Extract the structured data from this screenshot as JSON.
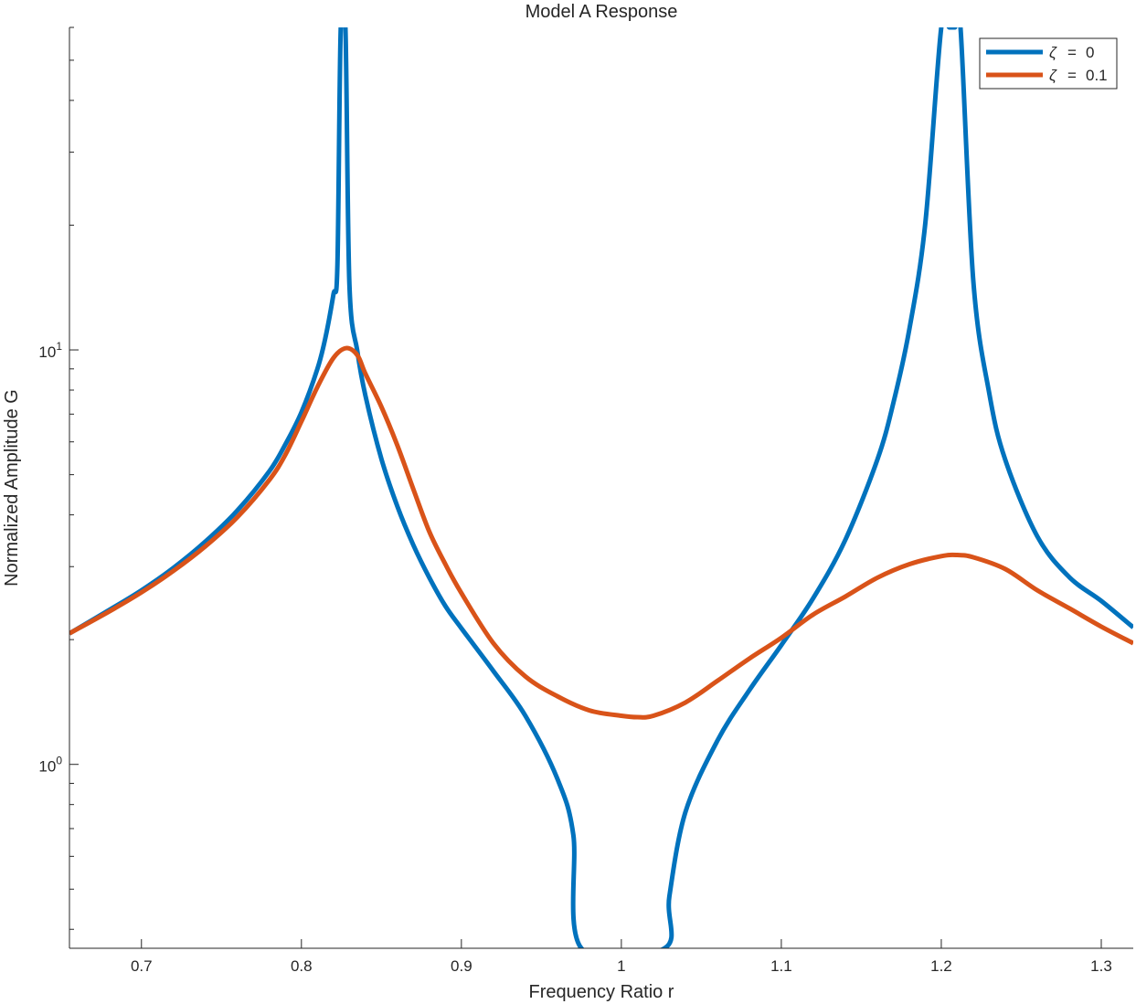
{
  "chart_data": {
    "type": "line",
    "title": "Model A Response",
    "xlabel": "Frequency Ratio r",
    "ylabel": "Normalized Amplitude G",
    "y_scale": "log",
    "xlim": [
      0.655,
      1.32
    ],
    "ylim": [
      0.36,
      60
    ],
    "x_ticks": [
      {
        "value": 0.7,
        "label": "0.7"
      },
      {
        "value": 0.8,
        "label": "0.8"
      },
      {
        "value": 0.9,
        "label": "0.9"
      },
      {
        "value": 1.0,
        "label": "1"
      },
      {
        "value": 1.1,
        "label": "1.1"
      },
      {
        "value": 1.2,
        "label": "1.2"
      },
      {
        "value": 1.3,
        "label": "1.3"
      }
    ],
    "y_ticks": [
      {
        "value": 1,
        "base": "10",
        "exp": "0"
      },
      {
        "value": 10,
        "base": "10",
        "exp": "1"
      }
    ],
    "grid": false,
    "legend_position": "top-right",
    "series": [
      {
        "name": "ζ = 0",
        "legend": {
          "symbol": "ζ",
          "op": "=",
          "val": "0"
        },
        "color": "#0072BD",
        "x": [
          0.655,
          0.68,
          0.7,
          0.72,
          0.74,
          0.76,
          0.78,
          0.79,
          0.8,
          0.81,
          0.815,
          0.82,
          0.8225,
          0.8246,
          0.8275,
          0.83,
          0.835,
          0.84,
          0.85,
          0.86,
          0.87,
          0.88,
          0.89,
          0.9,
          0.92,
          0.94,
          0.96,
          0.97,
          0.975,
          1.027,
          1.03,
          1.04,
          1.06,
          1.08,
          1.1,
          1.12,
          1.14,
          1.16,
          1.17,
          1.18,
          1.19,
          1.2,
          1.205,
          1.2085,
          1.212,
          1.22,
          1.23,
          1.24,
          1.26,
          1.28,
          1.3,
          1.32
        ],
        "y": [
          2.07,
          2.36,
          2.63,
          2.98,
          3.45,
          4.1,
          5.1,
          5.92,
          7.07,
          9.0,
          10.7,
          13.6,
          16.0,
          60,
          60,
          14.4,
          9.91,
          7.76,
          5.46,
          4.19,
          3.38,
          2.82,
          2.41,
          2.13,
          1.68,
          1.31,
          0.923,
          0.675,
          0.36,
          0.36,
          0.48,
          0.766,
          1.14,
          1.51,
          1.94,
          2.52,
          3.48,
          5.43,
          7.44,
          11.2,
          20.2,
          60,
          60,
          60,
          60,
          14.7,
          7.85,
          5.43,
          3.55,
          2.83,
          2.48,
          2.14
        ]
      },
      {
        "name": "ζ = 0.1",
        "legend": {
          "symbol": "ζ",
          "op": "=",
          "val": "0.1"
        },
        "color": "#D95319",
        "x": [
          0.655,
          0.68,
          0.7,
          0.72,
          0.74,
          0.76,
          0.78,
          0.79,
          0.8,
          0.81,
          0.82,
          0.828,
          0.835,
          0.84,
          0.85,
          0.86,
          0.87,
          0.88,
          0.89,
          0.9,
          0.92,
          0.94,
          0.96,
          0.98,
          1.0,
          1.01,
          1.02,
          1.04,
          1.06,
          1.08,
          1.1,
          1.12,
          1.14,
          1.16,
          1.18,
          1.2,
          1.21,
          1.22,
          1.24,
          1.26,
          1.28,
          1.3,
          1.32
        ],
        "y": [
          2.07,
          2.34,
          2.6,
          2.93,
          3.36,
          3.95,
          4.86,
          5.59,
          6.72,
          8.14,
          9.56,
          10.1,
          9.71,
          8.76,
          7.29,
          5.88,
          4.61,
          3.64,
          3.04,
          2.59,
          1.96,
          1.63,
          1.46,
          1.35,
          1.31,
          1.3,
          1.31,
          1.41,
          1.59,
          1.8,
          2.02,
          2.3,
          2.54,
          2.82,
          3.04,
          3.18,
          3.2,
          3.16,
          2.96,
          2.63,
          2.38,
          2.15,
          1.96
        ]
      }
    ]
  }
}
